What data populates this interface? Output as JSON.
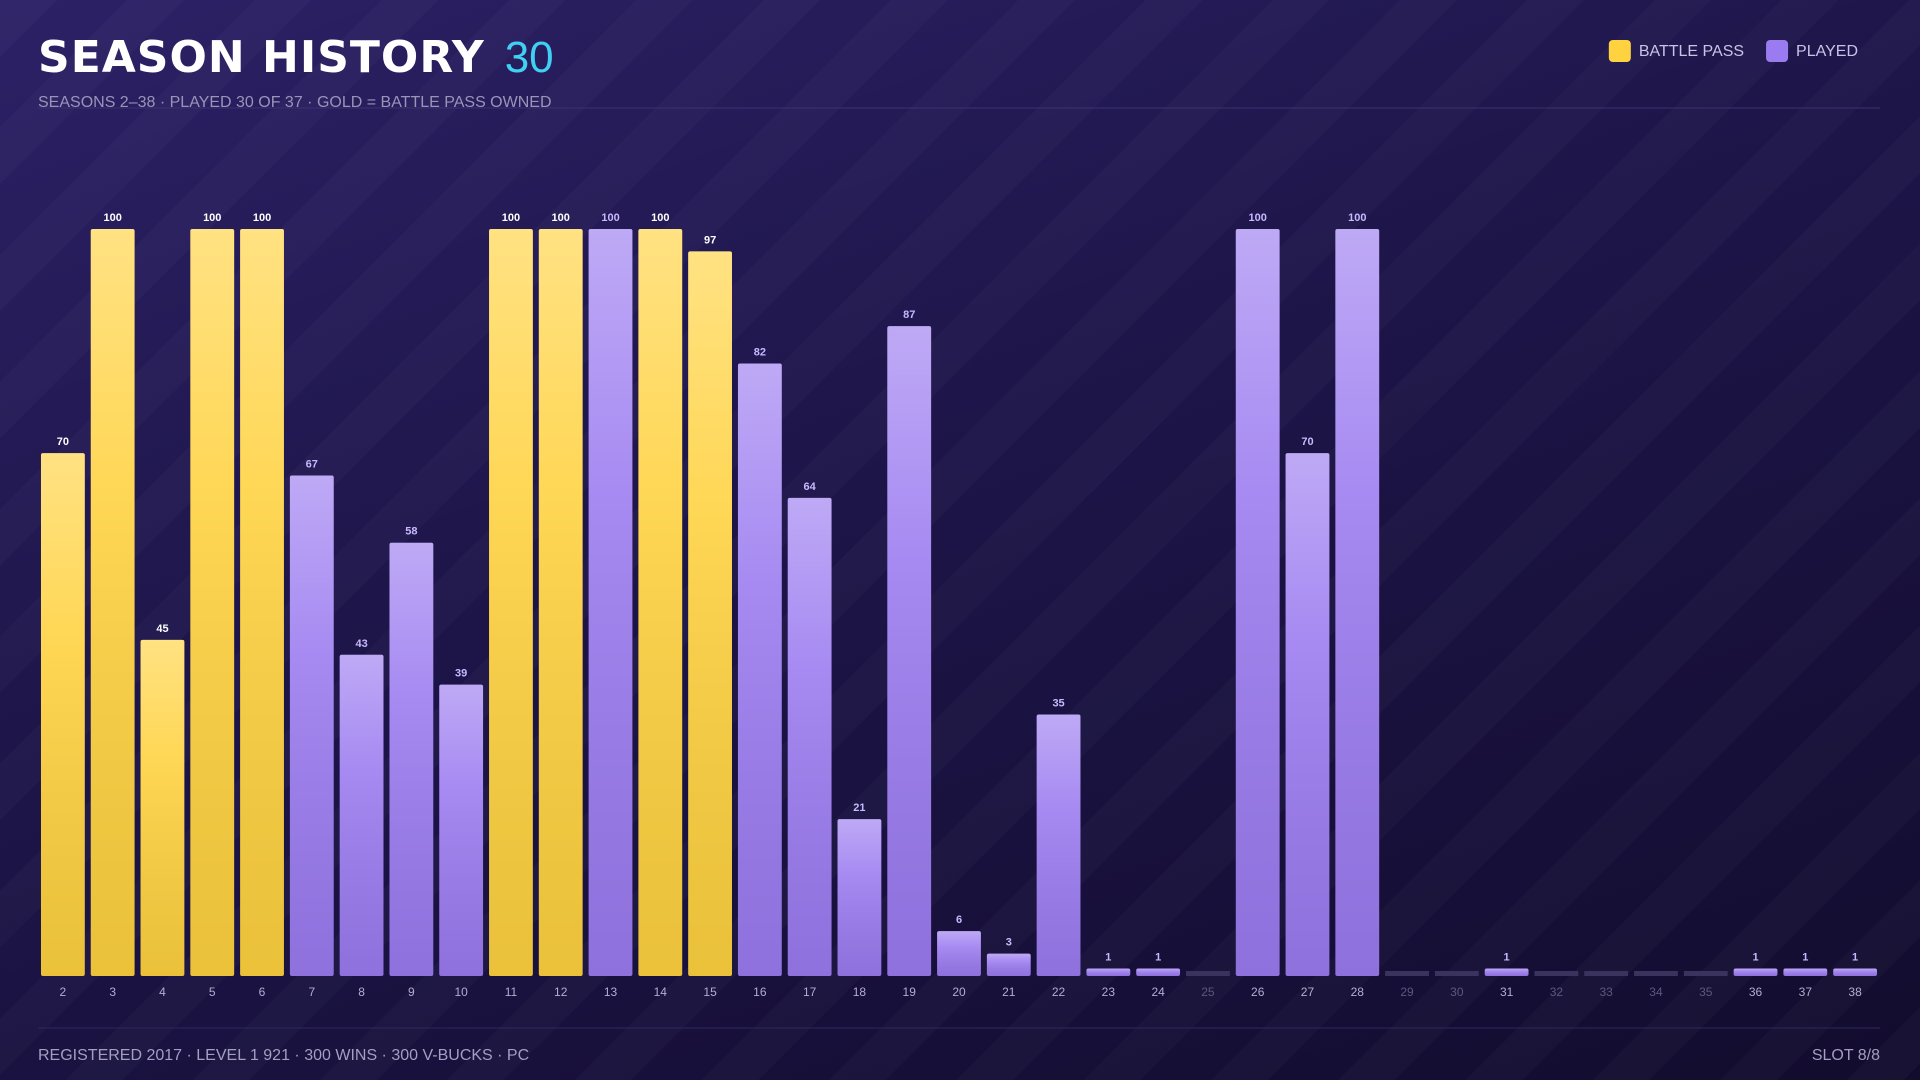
{
  "chart_data": {
    "type": "bar",
    "title": "SEASON HISTORY",
    "title_count": 30,
    "subtitle": "SEASONS 2–38 · PLAYED 30 OF 37 · GOLD = BATTLE PASS OWNED",
    "footer_left": "REGISTERED 2017 · LEVEL 1 921 · 300 WINS · 300 V-BUCKS · PC",
    "footer_right": "SLOT 8/8",
    "categories": [
      "2",
      "3",
      "4",
      "5",
      "6",
      "7",
      "8",
      "9",
      "10",
      "11",
      "12",
      "13",
      "14",
      "15",
      "16",
      "17",
      "18",
      "19",
      "20",
      "21",
      "22",
      "23",
      "24",
      "25",
      "26",
      "27",
      "28",
      "29",
      "30",
      "31",
      "32",
      "33",
      "34",
      "35",
      "36",
      "37",
      "38"
    ],
    "series": [
      {
        "name": "BATTLE PASS",
        "color": "#ffd23f",
        "values": [
          70,
          100,
          45,
          100,
          100,
          null,
          null,
          null,
          null,
          100,
          100,
          null,
          100,
          97,
          null,
          null,
          null,
          null,
          null,
          null,
          null,
          null,
          null,
          null,
          null,
          null,
          null,
          null,
          null,
          null,
          null,
          null,
          null,
          null,
          null,
          null,
          null
        ]
      },
      {
        "name": "PLAYED",
        "color": "#9b7bf0",
        "values": [
          null,
          null,
          null,
          null,
          null,
          67,
          43,
          58,
          39,
          null,
          null,
          100,
          null,
          null,
          82,
          64,
          21,
          87,
          6,
          3,
          35,
          1,
          1,
          null,
          100,
          70,
          100,
          null,
          null,
          1,
          null,
          null,
          null,
          null,
          1,
          1,
          1
        ]
      }
    ],
    "ylim": [
      0,
      100
    ],
    "legend": "top-right"
  }
}
